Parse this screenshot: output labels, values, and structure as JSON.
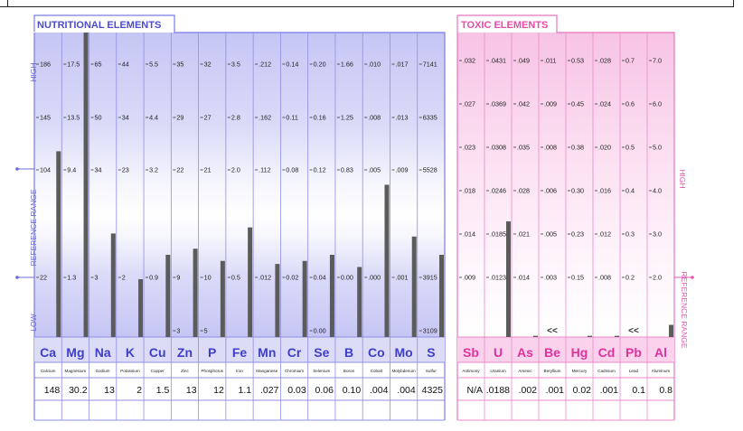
{
  "chart_data": [
    {
      "type": "bar",
      "title": "NUTRITIONAL ELEMENTS",
      "axis_labels": {
        "high": "HIGH",
        "reference_range": "REFERENCE   RANGE",
        "low": "LOW"
      },
      "elements": [
        {
          "symbol": "Ca",
          "name": "Calcium",
          "value": "148",
          "level": 0.61,
          "ticks": [
            "186",
            "145",
            "104",
            "22"
          ]
        },
        {
          "symbol": "Mg",
          "name": "Magnesium",
          "value": "30.2",
          "level": 1.0,
          "ticks": [
            "17.5",
            "13.5",
            "9.4",
            "1.3"
          ]
        },
        {
          "symbol": "Na",
          "name": "Sodium",
          "value": "13",
          "level": 0.34,
          "ticks": [
            "65",
            "50",
            "34",
            "3"
          ]
        },
        {
          "symbol": "K",
          "name": "Potassium",
          "value": "2",
          "level": 0.19,
          "ticks": [
            "44",
            "34",
            "23",
            "2"
          ]
        },
        {
          "symbol": "Cu",
          "name": "Copper",
          "value": "1.5",
          "level": 0.27,
          "ticks": [
            "5.5",
            "4.4",
            "3.2",
            "0.9"
          ]
        },
        {
          "symbol": "Zn",
          "name": "Zinc",
          "value": "13",
          "level": 0.29,
          "ticks": [
            "35",
            "29",
            "22",
            "9",
            "3"
          ]
        },
        {
          "symbol": "P",
          "name": "Phosphorus",
          "value": "12",
          "level": 0.25,
          "ticks": [
            "32",
            "27",
            "21",
            "10",
            "5"
          ]
        },
        {
          "symbol": "Fe",
          "name": "Iron",
          "value": "1.1",
          "level": 0.36,
          "ticks": [
            "3.5",
            "2.8",
            "2.0",
            "0.5"
          ]
        },
        {
          "symbol": "Mn",
          "name": "Manganese",
          "value": ".027",
          "level": 0.24,
          "ticks": [
            ".212",
            ".162",
            ".112",
            ".012"
          ]
        },
        {
          "symbol": "Cr",
          "name": "Chromium",
          "value": "0.03",
          "level": 0.25,
          "ticks": [
            "0.14",
            "0.11",
            "0.08",
            "0.02"
          ]
        },
        {
          "symbol": "Se",
          "name": "Selenium",
          "value": "0.06",
          "level": 0.27,
          "ticks": [
            "0.20",
            "0.16",
            "0.12",
            "0.04",
            "0.00"
          ]
        },
        {
          "symbol": "B",
          "name": "Boron",
          "value": "0.10",
          "level": 0.23,
          "ticks": [
            "1.66",
            "1.25",
            "0.83",
            "0.00"
          ]
        },
        {
          "symbol": "Co",
          "name": "Cobalt",
          "value": ".004",
          "level": 0.5,
          "ticks": [
            ".010",
            ".008",
            ".005",
            ".000"
          ]
        },
        {
          "symbol": "Mo",
          "name": "Molybdenum",
          "value": ".004",
          "level": 0.33,
          "ticks": [
            ".017",
            ".013",
            ".009",
            ".001"
          ]
        },
        {
          "symbol": "S",
          "name": "Sulfur",
          "value": "4325",
          "level": 0.27,
          "ticks": [
            "7141",
            "6335",
            "5528",
            "3915",
            "3109"
          ]
        }
      ]
    },
    {
      "type": "bar",
      "title": "TOXIC ELEMENTS",
      "axis_labels": {
        "high": "HIGH",
        "reference_range": "REFERENCE RANGE"
      },
      "below_range_marker": "<<",
      "elements": [
        {
          "symbol": "Sb",
          "name": "Antimony",
          "value": "N/A",
          "level": 0.0,
          "ticks": [
            ".032",
            ".027",
            ".023",
            ".018",
            ".014",
            ".009"
          ]
        },
        {
          "symbol": "U",
          "name": "Uranium",
          "value": ".0188",
          "level": 0.38,
          "ticks": [
            ".0431",
            ".0369",
            ".0308",
            ".0246",
            ".0185",
            ".0123"
          ]
        },
        {
          "symbol": "As",
          "name": "Arsenic",
          "value": ".002",
          "level": 0.004,
          "ticks": [
            ".049",
            ".042",
            ".035",
            ".028",
            ".021",
            ".014"
          ]
        },
        {
          "symbol": "Be",
          "name": "Beryllium",
          "value": ".001",
          "level": 0.0,
          "marker": true,
          "ticks": [
            ".011",
            ".009",
            ".008",
            ".006",
            ".005",
            ".003"
          ]
        },
        {
          "symbol": "Hg",
          "name": "Mercury",
          "value": "0.02",
          "level": 0.004,
          "ticks": [
            "0.53",
            "0.45",
            "0.38",
            "0.30",
            "0.23",
            "0.15"
          ]
        },
        {
          "symbol": "Cd",
          "name": "Cadmium",
          "value": ".001",
          "level": 0.004,
          "ticks": [
            ".028",
            ".024",
            ".020",
            ".016",
            ".012",
            ".008"
          ]
        },
        {
          "symbol": "Pb",
          "name": "Lead",
          "value": "0.1",
          "level": 0.0,
          "marker": true,
          "ticks": [
            "0.7",
            "0.6",
            "0.5",
            "0.4",
            "0.3",
            "0.2"
          ]
        },
        {
          "symbol": "Al",
          "name": "Aluminum",
          "value": "0.8",
          "level": 0.04,
          "ticks": [
            "7.0",
            "6.0",
            "5.0",
            "4.0",
            "3.0",
            "2.0"
          ]
        }
      ]
    }
  ]
}
